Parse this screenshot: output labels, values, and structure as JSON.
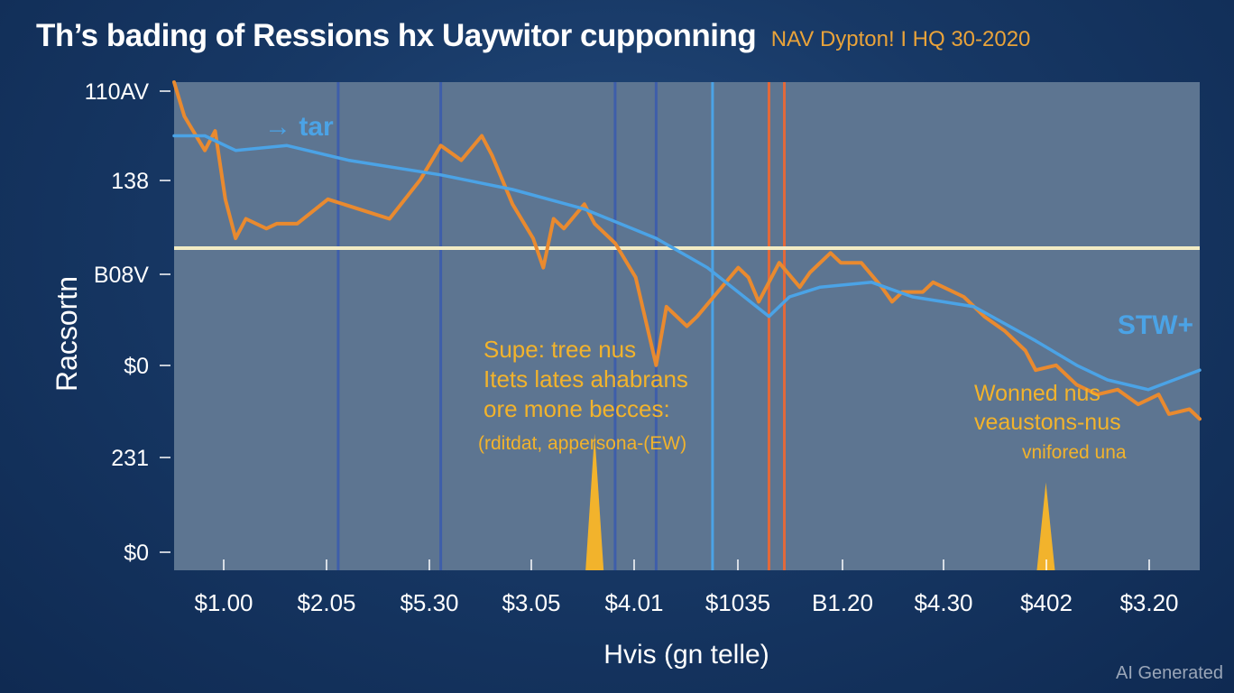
{
  "header": {
    "title": "Th’s bading of Ressions hx Uaywitor cupponning",
    "subtitle": "NAV Dypton! I HQ 30-2020"
  },
  "colors": {
    "background": "#173865",
    "plot_area": "#5d7591",
    "nav_line": "#e98a2f",
    "benchmark_line": "#4ba3e6",
    "threshold_line": "#f2ecc4",
    "annotation_text": "#f2b32c",
    "vline_dark": "#3e5eaa",
    "vline_light": "#4ba3e6",
    "vline_orange": "#e2693a"
  },
  "chart_data": {
    "type": "line",
    "xlabel": "Hvis (gn telle)",
    "ylabel": "Racsortn",
    "x_tick_labels": [
      "$1.00",
      "$2.05",
      "$5.30",
      "$3.05",
      "$4.01",
      "$1035",
      "B1.20",
      "$4.30",
      "$402",
      "$3.20"
    ],
    "y_tick_labels": [
      "110AV",
      "138",
      "B08V",
      "$0",
      "231",
      "$0"
    ],
    "x_range": [
      0,
      100
    ],
    "y_range": [
      0,
      100
    ],
    "grid": false,
    "series": [
      {
        "name": "",
        "color": "#e98a2f",
        "x": [
          0,
          1,
          3,
          4,
          5,
          6,
          7,
          9,
          10,
          12,
          15,
          18,
          21,
          24,
          26,
          28,
          30,
          31,
          33,
          35,
          36,
          37,
          38,
          40,
          41,
          43,
          45,
          47,
          48,
          50,
          51,
          53,
          55,
          56,
          57,
          59,
          61,
          62,
          64,
          65,
          67,
          69,
          70,
          71,
          73,
          74,
          75,
          77,
          79,
          81,
          83,
          84,
          86,
          88,
          90,
          92,
          94,
          96,
          97,
          99,
          100
        ],
        "y": [
          100,
          93,
          86,
          90,
          76,
          68,
          72,
          70,
          71,
          71,
          76,
          74,
          72,
          80,
          87,
          84,
          89,
          85,
          75,
          68,
          62,
          72,
          70,
          75,
          71,
          67,
          60,
          42,
          54,
          50,
          52,
          57,
          62,
          60,
          55,
          63,
          58,
          61,
          65,
          63,
          63,
          58,
          55,
          57,
          57,
          59,
          58,
          56,
          52,
          49,
          45,
          41,
          42,
          38,
          36,
          37,
          34,
          36,
          32,
          33,
          31
        ]
      },
      {
        "name": "",
        "color": "#4ba3e6",
        "x": [
          0,
          3,
          6,
          11,
          17,
          26,
          33,
          40,
          47,
          52,
          58,
          60,
          63,
          68,
          72,
          78,
          84,
          88,
          91,
          95,
          100
        ],
        "y": [
          89,
          89,
          86,
          87,
          84,
          81,
          78,
          74,
          68,
          62,
          52,
          56,
          58,
          59,
          56,
          54,
          47,
          42,
          39,
          37,
          41
        ]
      }
    ],
    "threshold": {
      "y": 66
    },
    "vertical_markers": [
      {
        "x": 16,
        "color": "#3e5eaa"
      },
      {
        "x": 26,
        "color": "#3e5eaa"
      },
      {
        "x": 43,
        "color": "#3e5eaa"
      },
      {
        "x": 47,
        "color": "#3e5eaa"
      },
      {
        "x": 52.5,
        "color": "#4ba3e6"
      },
      {
        "x": 58,
        "color": "#e2693a"
      },
      {
        "x": 59.5,
        "color": "#e2693a"
      }
    ],
    "spikes": [
      {
        "x": 41,
        "top": 28
      },
      {
        "x": 85,
        "top": 18
      }
    ],
    "legend_entries": [
      {
        "text": "→ tar",
        "color": "#4ba3e6"
      },
      {
        "text": "STW+",
        "color": "#4ba3e6"
      }
    ],
    "annotations": [
      {
        "color": "#f2b32c",
        "lines": [
          "Supe: tree nus",
          "Itets lates ahabrans",
          "ore mone becces:"
        ]
      },
      {
        "color": "#f2b32c",
        "lines": [
          "(rditdat, appersona-(EW)"
        ]
      },
      {
        "color": "#f2b32c",
        "lines": [
          "Wonned nus",
          "veaustons-nus"
        ]
      },
      {
        "color": "#f2b32c",
        "lines": [
          "vnifored una"
        ]
      }
    ]
  },
  "watermark": "AI Generated"
}
